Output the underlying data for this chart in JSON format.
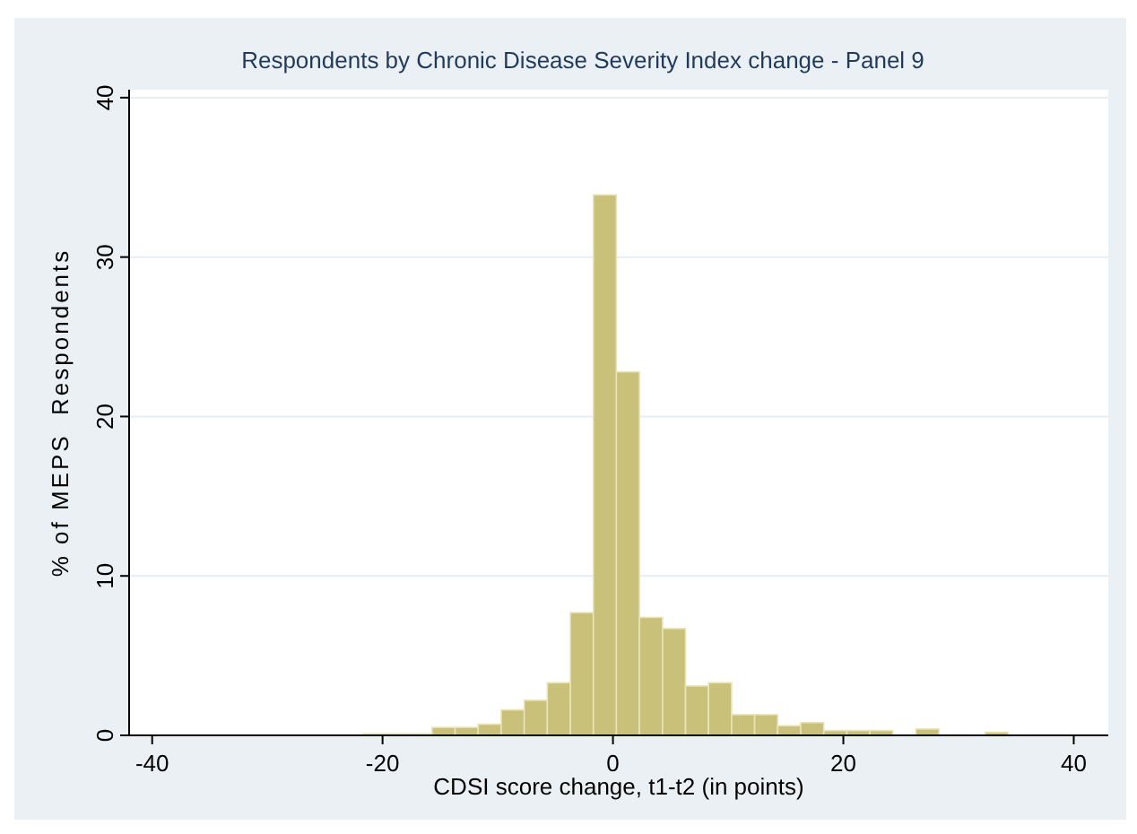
{
  "chart_data": {
    "type": "histogram",
    "title": "Respondents by Chronic Disease Severity Index change - Panel 9",
    "xlabel": "CDSI score change, t1-t2 (in points)",
    "ylabel": "% of MEPS  Respondents",
    "bins": [
      -21.7,
      -19.7,
      -17.7,
      -15.7,
      -13.7,
      -11.7,
      -9.7,
      -7.7,
      -5.7,
      -3.7,
      -1.7,
      0.3,
      2.3,
      4.3,
      6.3,
      8.3,
      10.3,
      12.3,
      14.3,
      16.3,
      18.3,
      20.3,
      22.3,
      24.3,
      26.3,
      28.3,
      30.3,
      32.3,
      34.3
    ],
    "values": [
      0.1,
      0.1,
      0.1,
      0.5,
      0.5,
      0.7,
      1.6,
      2.2,
      3.3,
      7.7,
      33.9,
      22.8,
      7.4,
      6.7,
      3.1,
      3.3,
      1.3,
      1.3,
      0.6,
      0.8,
      0.3,
      0.3,
      0.3,
      0,
      0.4,
      0,
      0,
      0.2
    ],
    "color": "#c9c07a",
    "xlim": [
      -42,
      43
    ],
    "xticks": [
      -40,
      -20,
      0,
      20,
      40
    ],
    "ylim": [
      0,
      40.5
    ],
    "yticks": [
      0,
      10,
      20,
      30,
      40
    ],
    "grid": "y"
  }
}
